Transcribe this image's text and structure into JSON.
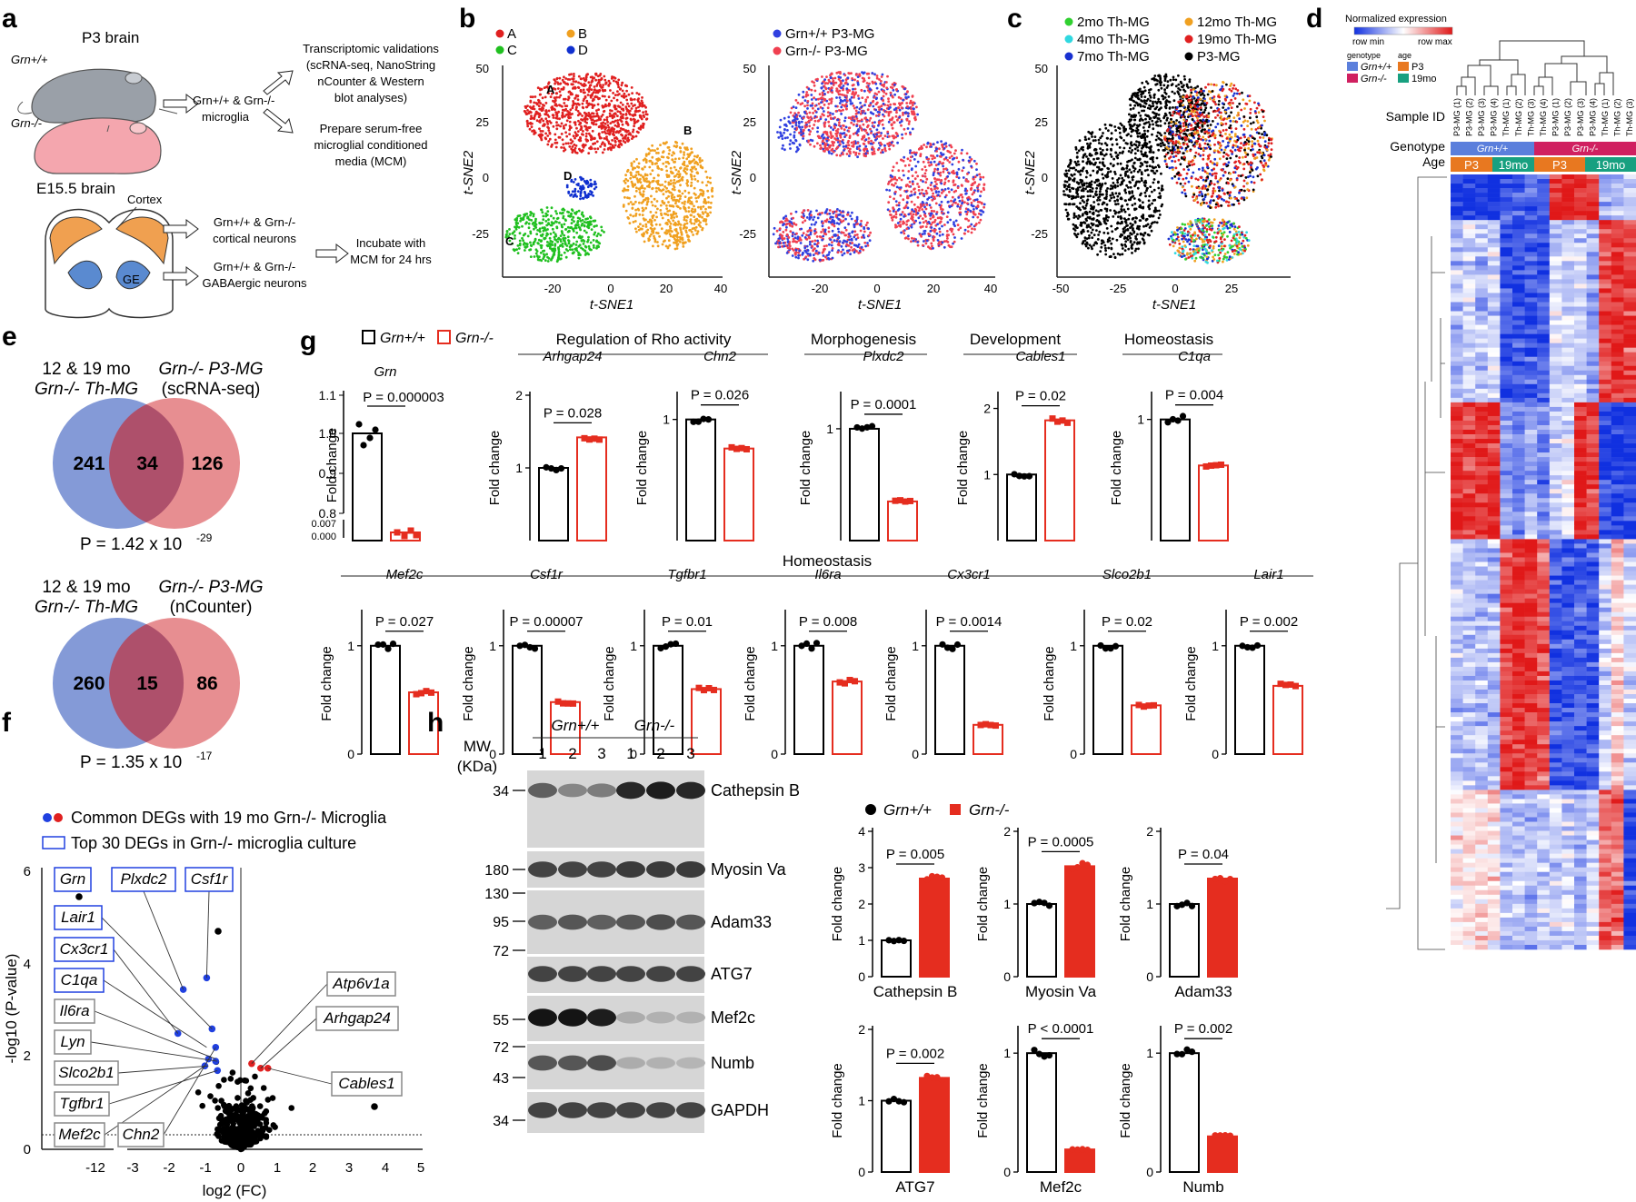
{
  "panels": {
    "a": "a",
    "b": "b",
    "c": "c",
    "d": "d",
    "e": "e",
    "f": "f",
    "g": "g",
    "h": "h"
  },
  "panel_a": {
    "p3_brain": "P3 brain",
    "grn_wt": "Grn+/+",
    "grn_ko": "Grn-/-",
    "microglia_l1": "Grn+/+ & Grn-/-",
    "microglia_l2": "microglia",
    "transcriptomic": [
      "Transcriptomic validations",
      "(scRNA-seq, NanoString",
      "nCounter & Western",
      "blot analyses)"
    ],
    "mcm": [
      "Prepare serum-free",
      "microglial conditioned",
      "media (MCM)"
    ],
    "e15_brain": "E15.5 brain",
    "cortex": "Cortex",
    "ge": "GE",
    "cortical": [
      "Grn+/+ & Grn-/-",
      "cortical neurons"
    ],
    "gaba": [
      "Grn+/+ & Grn-/-",
      "GABAergic neurons"
    ],
    "incubate": [
      "Incubate with",
      "MCM for 24 hrs"
    ]
  },
  "panel_b": {
    "legend1": [
      "A",
      "B",
      "C",
      "D"
    ],
    "legend1_colors": [
      "#e02020",
      "#f0a020",
      "#20c020",
      "#1030d0"
    ],
    "cluster_labels": [
      "A",
      "B",
      "C",
      "D"
    ],
    "legend2": [
      "Grn+/+ P3-MG",
      "Grn-/- P3-MG"
    ],
    "legend2_colors": [
      "#3040e0",
      "#f04050"
    ],
    "xlabel": "t-SNE1",
    "ylabel": "t-SNE2",
    "xticks": [
      "-20",
      "0",
      "20",
      "40"
    ],
    "yticks": [
      "50",
      "25",
      "0",
      "-25"
    ]
  },
  "panel_c": {
    "legend": [
      "2mo Th-MG",
      "4mo Th-MG",
      "7mo Th-MG",
      "12mo Th-MG",
      "19mo Th-MG",
      "P3-MG"
    ],
    "legend_colors": [
      "#30d030",
      "#30d8e0",
      "#1830d0",
      "#f0a020",
      "#e02020",
      "#000000"
    ],
    "xlabel": "t-SNE1",
    "ylabel": "t-SNE2",
    "xticks": [
      "-50",
      "-25",
      "0",
      "25"
    ],
    "yticks": [
      "50",
      "25",
      "0",
      "-25"
    ]
  },
  "panel_d": {
    "title": "Normalized expression",
    "row_min": "row min",
    "row_max": "row max",
    "genotype": "genotype",
    "age": "age",
    "legend_gt": [
      "Grn+/+",
      "Grn-/-"
    ],
    "legend_age": [
      "P3",
      "19mo"
    ],
    "sample_id": "Sample ID",
    "genotype_label": "Genotype",
    "age_label": "Age",
    "samples": [
      "P3-MG (1)",
      "P3-MG (2)",
      "P3-MG (3)",
      "P3-MG (4)",
      "Th-MG (1)",
      "Th-MG (2)",
      "Th-MG (3)",
      "Th-MG (4)",
      "P3-MG (1)",
      "P3-MG (2)",
      "P3-MG (3)",
      "P3-MG (4)",
      "Th-MG (1)",
      "Th-MG (2)",
      "Th-MG (3)"
    ],
    "genotype_bar": [
      "Grn+/+",
      "Grn-/-"
    ],
    "age_bar": [
      "P3",
      "19mo",
      "P3",
      "19mo"
    ],
    "colors": {
      "wt": "#5b7fdc",
      "ko": "#d02060",
      "p3": "#e87820",
      "mo19": "#18a080",
      "low": "#1030e0",
      "high": "#e01818"
    }
  },
  "panel_e": {
    "venn1": {
      "left_title": [
        "12 & 19 mo",
        "Grn-/- Th-MG"
      ],
      "right_title": [
        "Grn-/- P3-MG",
        "(scRNA-seq)"
      ],
      "left": "241",
      "mid": "34",
      "right": "126",
      "p": "P = 1.42 x 10",
      "exp": "-29"
    },
    "venn2": {
      "left_title": [
        "12 & 19 mo",
        "Grn-/- Th-MG"
      ],
      "right_title": [
        "Grn-/- P3-MG",
        "(nCounter)"
      ],
      "left": "260",
      "mid": "15",
      "right": "86",
      "p": "P = 1.35 x 10",
      "exp": "-17"
    }
  },
  "panel_f": {
    "legend1": "Common DEGs with 19 mo Grn-/- Microglia",
    "legend2": "Top 30 DEGs in Grn-/- microglia culture",
    "xlabel": "log2 (FC)",
    "ylabel": "-log10 (P-value)",
    "xticks": [
      "-12",
      "-3",
      "-2",
      "-1",
      "0",
      "1",
      "2",
      "3",
      "4",
      "5"
    ],
    "yticks": [
      "6",
      "4",
      "2",
      "0"
    ],
    "genes_left": [
      "Grn",
      "Lair1",
      "Cx3cr1",
      "C1qa",
      "Il6ra",
      "Lyn",
      "Slco2b1",
      "Tgfbr1",
      "Mef2c",
      "Chn2",
      "Plxdc2",
      "Csf1r"
    ],
    "genes_right": [
      "Atp6v1a",
      "Arhgap24",
      "Cables1"
    ]
  },
  "panel_g": {
    "legend": [
      "Grn+/+",
      "Grn-/-"
    ],
    "groups": [
      "Regulation of Rho activity",
      "Morphogenesis",
      "Development",
      "Homeostasis",
      "Homeostasis"
    ],
    "ylabel": "Fold change",
    "row1": [
      {
        "gene": "Grn",
        "p": "P = 0.000003",
        "wt": 1.0,
        "ko": 0.003
      },
      {
        "gene": "Arhgap24",
        "p": "P = 0.028",
        "wt": 1.0,
        "ko": 1.42
      },
      {
        "gene": "Chn2",
        "p": "P = 0.026",
        "wt": 1.0,
        "ko": 0.76
      },
      {
        "gene": "Plxdc2",
        "p": "P = 0.0001",
        "wt": 1.0,
        "ko": 0.35
      },
      {
        "gene": "Cables1",
        "p": "P = 0.02",
        "wt": 1.0,
        "ko": 1.82
      },
      {
        "gene": "C1qa",
        "p": "P = 0.004",
        "wt": 1.0,
        "ko": 0.62
      }
    ],
    "row2": [
      {
        "gene": "Mef2c",
        "p": "P = 0.027",
        "wt": 1.0,
        "ko": 0.57
      },
      {
        "gene": "Csf1r",
        "p": "P = 0.00007",
        "wt": 1.0,
        "ko": 0.48
      },
      {
        "gene": "Tgfbr1",
        "p": "P = 0.01",
        "wt": 1.0,
        "ko": 0.6
      },
      {
        "gene": "Il6ra",
        "p": "P = 0.008",
        "wt": 1.0,
        "ko": 0.67
      },
      {
        "gene": "Cx3cr1",
        "p": "P = 0.0014",
        "wt": 1.0,
        "ko": 0.27
      },
      {
        "gene": "Slco2b1",
        "p": "P = 0.02",
        "wt": 1.0,
        "ko": 0.45
      },
      {
        "gene": "Lair1",
        "p": "P = 0.002",
        "wt": 1.0,
        "ko": 0.63
      }
    ],
    "grn_axis": {
      "yticks": [
        "1.1",
        "1.0",
        "0.9",
        "0.8",
        "0.007",
        "0.000"
      ]
    }
  },
  "panel_h": {
    "mw_label": [
      "MW",
      "(KDa)"
    ],
    "groups": [
      "Grn+/+",
      "Grn-/-"
    ],
    "lanes": [
      "1",
      "2",
      "3",
      "1",
      "2",
      "3"
    ],
    "mw_ticks": [
      "34",
      "180",
      "130",
      "95",
      "72",
      "55",
      "72",
      "43",
      "34"
    ],
    "bands": [
      "Cathepsin B",
      "Myosin Va",
      "Adam33",
      "ATG7",
      "Mef2c",
      "Numb",
      "GAPDH"
    ],
    "legend": [
      "Grn+/+",
      "Grn-/-"
    ],
    "ylabel": "Fold change",
    "bars": [
      {
        "name": "Cathepsin B",
        "p": "P = 0.005",
        "wt": 1.0,
        "ko": 2.7
      },
      {
        "name": "Myosin Va",
        "p": "P = 0.0005",
        "wt": 1.0,
        "ko": 1.52
      },
      {
        "name": "Adam33",
        "p": "P = 0.04",
        "wt": 1.0,
        "ko": 1.35
      },
      {
        "name": "ATG7",
        "p": "P = 0.002",
        "wt": 1.0,
        "ko": 1.32
      },
      {
        "name": "Mef2c",
        "p": "P < 0.0001",
        "wt": 1.0,
        "ko": 0.19
      },
      {
        "name": "Numb",
        "p": "P = 0.002",
        "wt": 1.0,
        "ko": 0.3
      }
    ]
  },
  "chart_data": [
    {
      "type": "bar",
      "title": "Grn",
      "categories": [
        "Grn+/+",
        "Grn-/-"
      ],
      "values": [
        1.0,
        0.003
      ],
      "ylabel": "Fold change"
    },
    {
      "type": "bar",
      "title": "Arhgap24",
      "categories": [
        "Grn+/+",
        "Grn-/-"
      ],
      "values": [
        1.0,
        1.42
      ],
      "ylim": [
        0,
        2
      ]
    },
    {
      "type": "bar",
      "title": "Chn2",
      "categories": [
        "Grn+/+",
        "Grn-/-"
      ],
      "values": [
        1.0,
        0.76
      ],
      "ylim": [
        0,
        1.2
      ]
    },
    {
      "type": "bar",
      "title": "Plxdc2",
      "categories": [
        "Grn+/+",
        "Grn-/-"
      ],
      "values": [
        1.0,
        0.35
      ],
      "ylim": [
        0,
        1.3
      ]
    },
    {
      "type": "bar",
      "title": "Cables1",
      "categories": [
        "Grn+/+",
        "Grn-/-"
      ],
      "values": [
        1.0,
        1.82
      ],
      "ylim": [
        0,
        2.3
      ]
    },
    {
      "type": "bar",
      "title": "C1qa",
      "categories": [
        "Grn+/+",
        "Grn-/-"
      ],
      "values": [
        1.0,
        0.62
      ],
      "ylim": [
        0,
        1.2
      ]
    },
    {
      "type": "bar",
      "title": "Mef2c",
      "categories": [
        "Grn+/+",
        "Grn-/-"
      ],
      "values": [
        1.0,
        0.57
      ],
      "ylim": [
        0,
        1.3
      ]
    },
    {
      "type": "bar",
      "title": "Csf1r",
      "categories": [
        "Grn+/+",
        "Grn-/-"
      ],
      "values": [
        1.0,
        0.48
      ],
      "ylim": [
        0,
        1.3
      ]
    },
    {
      "type": "bar",
      "title": "Tgfbr1",
      "categories": [
        "Grn+/+",
        "Grn-/-"
      ],
      "values": [
        1.0,
        0.6
      ],
      "ylim": [
        0,
        1.3
      ]
    },
    {
      "type": "bar",
      "title": "Il6ra",
      "categories": [
        "Grn+/+",
        "Grn-/-"
      ],
      "values": [
        1.0,
        0.67
      ],
      "ylim": [
        0,
        1.3
      ]
    },
    {
      "type": "bar",
      "title": "Cx3cr1",
      "categories": [
        "Grn+/+",
        "Grn-/-"
      ],
      "values": [
        1.0,
        0.27
      ],
      "ylim": [
        0,
        1.3
      ]
    },
    {
      "type": "bar",
      "title": "Slco2b1",
      "categories": [
        "Grn+/+",
        "Grn-/-"
      ],
      "values": [
        1.0,
        0.45
      ],
      "ylim": [
        0,
        1.3
      ]
    },
    {
      "type": "bar",
      "title": "Lair1",
      "categories": [
        "Grn+/+",
        "Grn-/-"
      ],
      "values": [
        1.0,
        0.63
      ],
      "ylim": [
        0,
        1.3
      ]
    },
    {
      "type": "bar",
      "title": "Cathepsin B",
      "categories": [
        "Grn+/+",
        "Grn-/-"
      ],
      "values": [
        1.0,
        2.7
      ],
      "ylim": [
        0,
        4
      ]
    },
    {
      "type": "bar",
      "title": "Myosin Va",
      "categories": [
        "Grn+/+",
        "Grn-/-"
      ],
      "values": [
        1.0,
        1.52
      ],
      "ylim": [
        0,
        2
      ]
    },
    {
      "type": "bar",
      "title": "Adam33",
      "categories": [
        "Grn+/+",
        "Grn-/-"
      ],
      "values": [
        1.0,
        1.35
      ],
      "ylim": [
        0,
        2
      ]
    },
    {
      "type": "bar",
      "title": "ATG7",
      "categories": [
        "Grn+/+",
        "Grn-/-"
      ],
      "values": [
        1.0,
        1.32
      ],
      "ylim": [
        0,
        2
      ]
    },
    {
      "type": "bar",
      "title": "Mef2c",
      "categories": [
        "Grn+/+",
        "Grn-/-"
      ],
      "values": [
        1.0,
        0.19
      ],
      "ylim": [
        0,
        1.2
      ]
    },
    {
      "type": "bar",
      "title": "Numb",
      "categories": [
        "Grn+/+",
        "Grn-/-"
      ],
      "values": [
        1.0,
        0.3
      ],
      "ylim": [
        0,
        1.2
      ]
    }
  ]
}
